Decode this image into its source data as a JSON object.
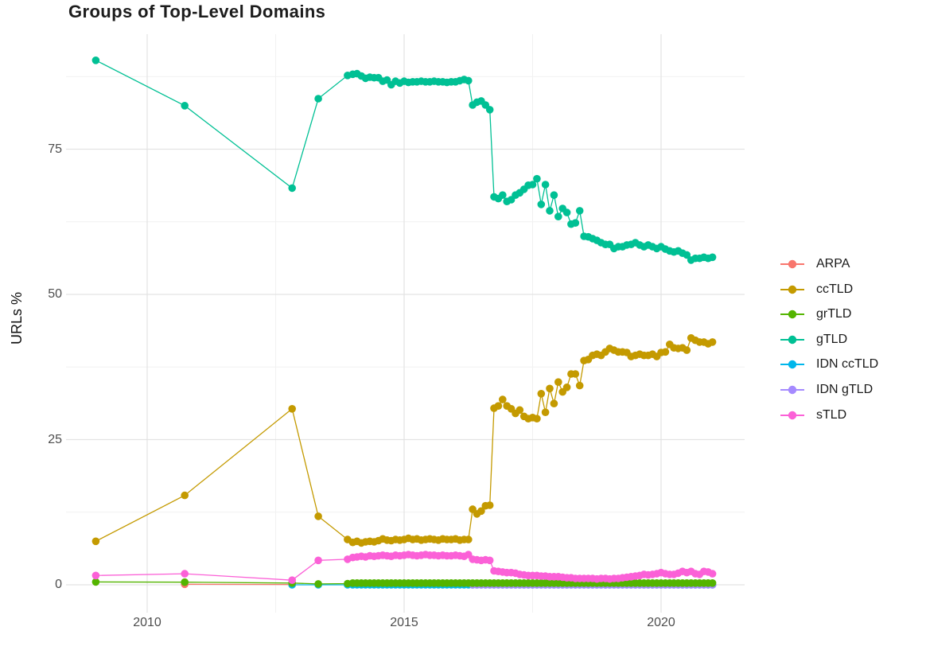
{
  "chart_data": {
    "type": "scatter-line",
    "title": "Groups of Top-Level Domains",
    "xlabel": "",
    "ylabel": "URLs %",
    "grid": true,
    "legend_position": "right",
    "x_axis": {
      "tick_labels": [
        "2010",
        "2015",
        "2020"
      ],
      "tick_values": [
        2010,
        2015,
        2020
      ],
      "minor_tick_values": [
        2012.5,
        2017.5
      ],
      "range": [
        2008.4,
        2021.6
      ]
    },
    "y_axis": {
      "tick_labels": [
        "0",
        "25",
        "50",
        "75"
      ],
      "tick_values": [
        0,
        25,
        50,
        75
      ],
      "minor_tick_values": [
        12.5,
        37.5,
        62.5,
        87.5
      ],
      "range": [
        -4.5,
        94.8
      ]
    },
    "legend": [
      {
        "label": "ARPA",
        "color": "#F8766D"
      },
      {
        "label": "ccTLD",
        "color": "#C49A00"
      },
      {
        "label": "grTLD",
        "color": "#53B400"
      },
      {
        "label": "gTLD",
        "color": "#00C094"
      },
      {
        "label": "IDN ccTLD",
        "color": "#00B6EB"
      },
      {
        "label": "IDN gTLD",
        "color": "#A58AFF"
      },
      {
        "label": "sTLD",
        "color": "#FB61D7"
      }
    ],
    "series": [
      {
        "name": "ARPA",
        "color": "#F8766D",
        "points": [
          [
            2010.73,
            0.1
          ],
          [
            2012.82,
            0.05
          ]
        ]
      },
      {
        "name": "IDN ccTLD",
        "color": "#00B6EB",
        "points": [
          [
            2012.82,
            0.0
          ],
          [
            2013.33,
            0.0
          ],
          [
            2013.9,
            0.0
          ]
        ],
        "flat": {
          "from": 2014.0,
          "to": 2021.0,
          "value": 0.0
        }
      },
      {
        "name": "IDN gTLD",
        "color": "#A58AFF",
        "points": [],
        "flat": {
          "from": 2016.333,
          "to": 2021.0,
          "value": 0.0
        }
      },
      {
        "name": "ccTLD",
        "color": "#C49A00",
        "points": [
          [
            2009.0,
            7.5
          ],
          [
            2010.73,
            15.4
          ],
          [
            2012.82,
            30.3
          ],
          [
            2013.33,
            11.8
          ],
          [
            2013.9,
            7.8
          ]
        ],
        "monthly_start": 2014.0,
        "monthly": [
          7.3,
          7.5,
          7.2,
          7.4,
          7.5,
          7.4,
          7.6,
          7.9,
          7.7,
          7.6,
          7.8,
          7.7,
          7.8,
          8.0,
          7.8,
          7.9,
          7.7,
          7.8,
          7.9,
          7.8,
          7.7,
          7.9,
          7.8,
          7.8,
          7.9,
          7.7,
          7.8,
          7.8,
          13.0,
          12.2,
          12.7,
          13.6,
          13.7,
          30.4,
          30.8,
          31.9,
          30.8,
          30.3,
          29.5,
          30.1,
          29.0,
          28.6,
          28.8,
          28.6,
          32.9,
          29.7,
          33.8,
          31.2,
          34.9,
          33.2,
          34.0,
          36.3,
          36.3,
          34.3,
          38.6,
          38.8,
          39.5,
          39.7,
          39.5,
          40.1,
          40.7,
          40.4,
          40.1,
          40.1,
          40.0,
          39.3,
          39.5,
          39.7,
          39.5,
          39.5,
          39.7,
          39.3,
          40.0,
          40.1,
          41.4,
          40.8,
          40.7,
          40.8,
          40.4,
          42.5,
          42.1,
          41.8,
          41.8,
          41.5,
          41.8
        ]
      },
      {
        "name": "gTLD",
        "color": "#00C094",
        "points": [
          [
            2009.0,
            90.3
          ],
          [
            2010.73,
            82.5
          ],
          [
            2012.82,
            68.3
          ],
          [
            2013.33,
            83.7
          ],
          [
            2013.9,
            87.7
          ]
        ],
        "monthly_start": 2014.0,
        "monthly": [
          87.9,
          88.0,
          87.6,
          87.2,
          87.4,
          87.3,
          87.3,
          86.7,
          86.9,
          86.1,
          86.7,
          86.4,
          86.7,
          86.5,
          86.6,
          86.6,
          86.7,
          86.6,
          86.6,
          86.7,
          86.6,
          86.6,
          86.5,
          86.6,
          86.6,
          86.8,
          87.0,
          86.8,
          82.6,
          83.1,
          83.3,
          82.6,
          81.8,
          66.8,
          66.5,
          67.1,
          66.0,
          66.3,
          67.1,
          67.5,
          68.1,
          68.8,
          68.9,
          69.9,
          65.5,
          68.9,
          64.4,
          67.1,
          63.4,
          64.8,
          64.1,
          62.1,
          62.3,
          64.4,
          60.0,
          59.9,
          59.6,
          59.3,
          58.9,
          58.6,
          58.6,
          57.9,
          58.2,
          58.2,
          58.5,
          58.6,
          58.9,
          58.5,
          58.2,
          58.5,
          58.2,
          57.9,
          58.2,
          57.8,
          57.5,
          57.3,
          57.5,
          57.1,
          56.8,
          55.9,
          56.2,
          56.2,
          56.4,
          56.2,
          56.4
        ]
      },
      {
        "name": "grTLD",
        "color": "#53B400",
        "points": [
          [
            2009.0,
            0.5
          ],
          [
            2010.73,
            0.45
          ],
          [
            2012.82,
            0.3
          ],
          [
            2013.33,
            0.15
          ],
          [
            2013.9,
            0.2
          ]
        ],
        "flat": {
          "from": 2014.0,
          "to": 2021.0,
          "value": 0.3
        }
      },
      {
        "name": "sTLD",
        "color": "#FB61D7",
        "points": [
          [
            2009.0,
            1.6
          ],
          [
            2010.73,
            1.9
          ],
          [
            2012.82,
            0.8
          ],
          [
            2013.33,
            4.2
          ],
          [
            2013.9,
            4.4
          ]
        ],
        "monthly_start": 2014.0,
        "monthly": [
          4.7,
          4.8,
          4.9,
          4.8,
          5.0,
          4.9,
          5.0,
          5.1,
          5.0,
          4.9,
          5.1,
          5.0,
          5.1,
          5.2,
          5.1,
          5.0,
          5.1,
          5.2,
          5.1,
          5.1,
          5.0,
          5.1,
          5.0,
          5.0,
          5.1,
          5.0,
          4.9,
          5.2,
          4.4,
          4.3,
          4.2,
          4.3,
          4.2,
          2.4,
          2.3,
          2.2,
          2.1,
          2.1,
          2.0,
          1.8,
          1.7,
          1.6,
          1.6,
          1.6,
          1.5,
          1.5,
          1.4,
          1.4,
          1.4,
          1.3,
          1.2,
          1.2,
          1.1,
          1.1,
          1.1,
          1.1,
          1.1,
          1.0,
          1.1,
          1.1,
          1.0,
          1.1,
          1.1,
          1.2,
          1.3,
          1.4,
          1.5,
          1.6,
          1.8,
          1.7,
          1.8,
          1.9,
          2.1,
          1.9,
          1.8,
          1.8,
          2.0,
          2.3,
          2.1,
          2.3,
          1.9,
          1.8,
          2.3,
          2.2,
          1.9
        ]
      }
    ],
    "style": {
      "background": "#ffffff",
      "major_grid_color": "#e3e3e3",
      "minor_grid_color": "#f1f1f1",
      "tick_label_color": "#4d4d4d",
      "point_radius": 4.8,
      "line_width": 1.3
    }
  }
}
